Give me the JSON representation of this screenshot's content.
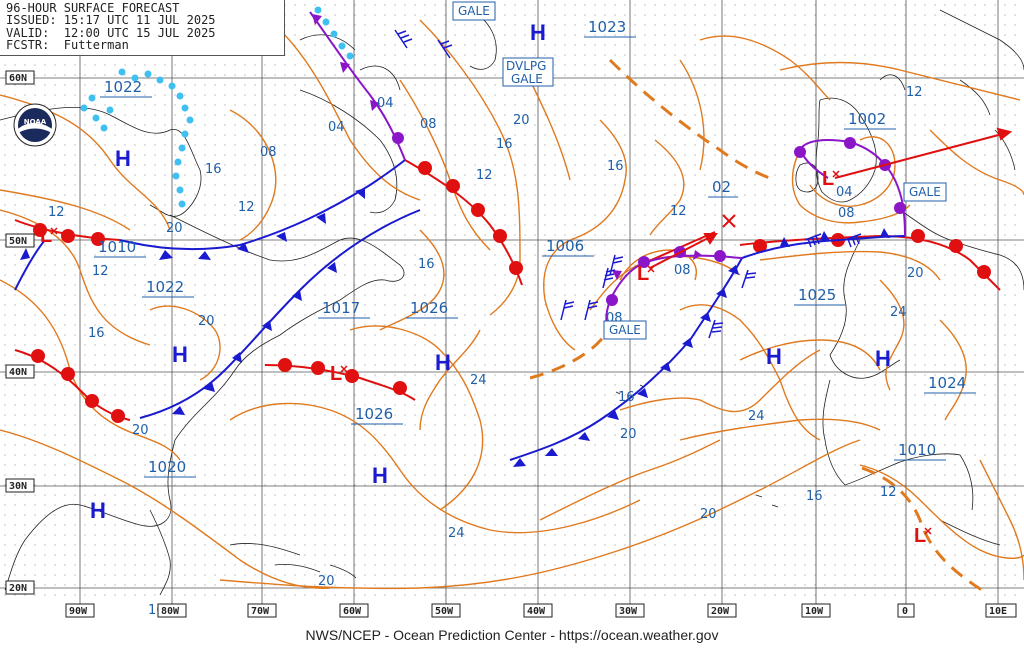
{
  "header": {
    "lines": [
      "96-HOUR SURFACE FORECAST",
      "ISSUED: 15:17 UTC 11 JUL 2025",
      "VALID:  12:00 UTC 15 JUL 2025",
      "FCSTR:  Futterman"
    ]
  },
  "footer": {
    "text": "NWS/NCEP - Ocean Prediction Center - https://ocean.weather.gov"
  },
  "lat_labels": [
    "60N",
    "50N",
    "40N",
    "30N",
    "20N"
  ],
  "lon_labels": [
    "90W",
    "80W",
    "70W",
    "60W",
    "50W",
    "40W",
    "30W",
    "20W",
    "10W",
    "0",
    "10E"
  ],
  "pressure_centers": [
    {
      "type": "H",
      "value": "1022"
    },
    {
      "type": "H",
      "value": "1022"
    },
    {
      "type": "H",
      "value": "1020"
    },
    {
      "type": "H",
      "value": "1026"
    },
    {
      "type": "H",
      "value": "1023"
    },
    {
      "type": "H",
      "value": "1025"
    },
    {
      "type": "H",
      "value": "1024"
    },
    {
      "type": "L",
      "value": "1010"
    },
    {
      "type": "L",
      "value": "1017"
    },
    {
      "type": "L",
      "value": "1006"
    },
    {
      "type": "L",
      "value": "1002"
    },
    {
      "type": "L",
      "value": "1010"
    },
    {
      "type": "L",
      "value": "02"
    }
  ],
  "warnings": [
    {
      "text": "GALE"
    },
    {
      "text": "DVLPG GALE"
    },
    {
      "text": "GALE"
    },
    {
      "text": "GALE"
    }
  ],
  "isobar_labels": [
    "04",
    "04",
    "08",
    "08",
    "12",
    "12",
    "12",
    "12",
    "16",
    "16",
    "16",
    "16",
    "16",
    "20",
    "20",
    "20",
    "20",
    "20",
    "20",
    "20",
    "20",
    "24",
    "24",
    "24",
    "24",
    "08",
    "08",
    "04",
    "16",
    "12",
    "12"
  ],
  "colors": {
    "isobar": "#e07a1f",
    "label": "#1f5fa8",
    "warm_front": "#e01010",
    "cold_front": "#1a1ad0",
    "occluded": "#8a16c8",
    "coast": "#222222",
    "grid": "#444444",
    "ice": "#3fc0f0"
  }
}
